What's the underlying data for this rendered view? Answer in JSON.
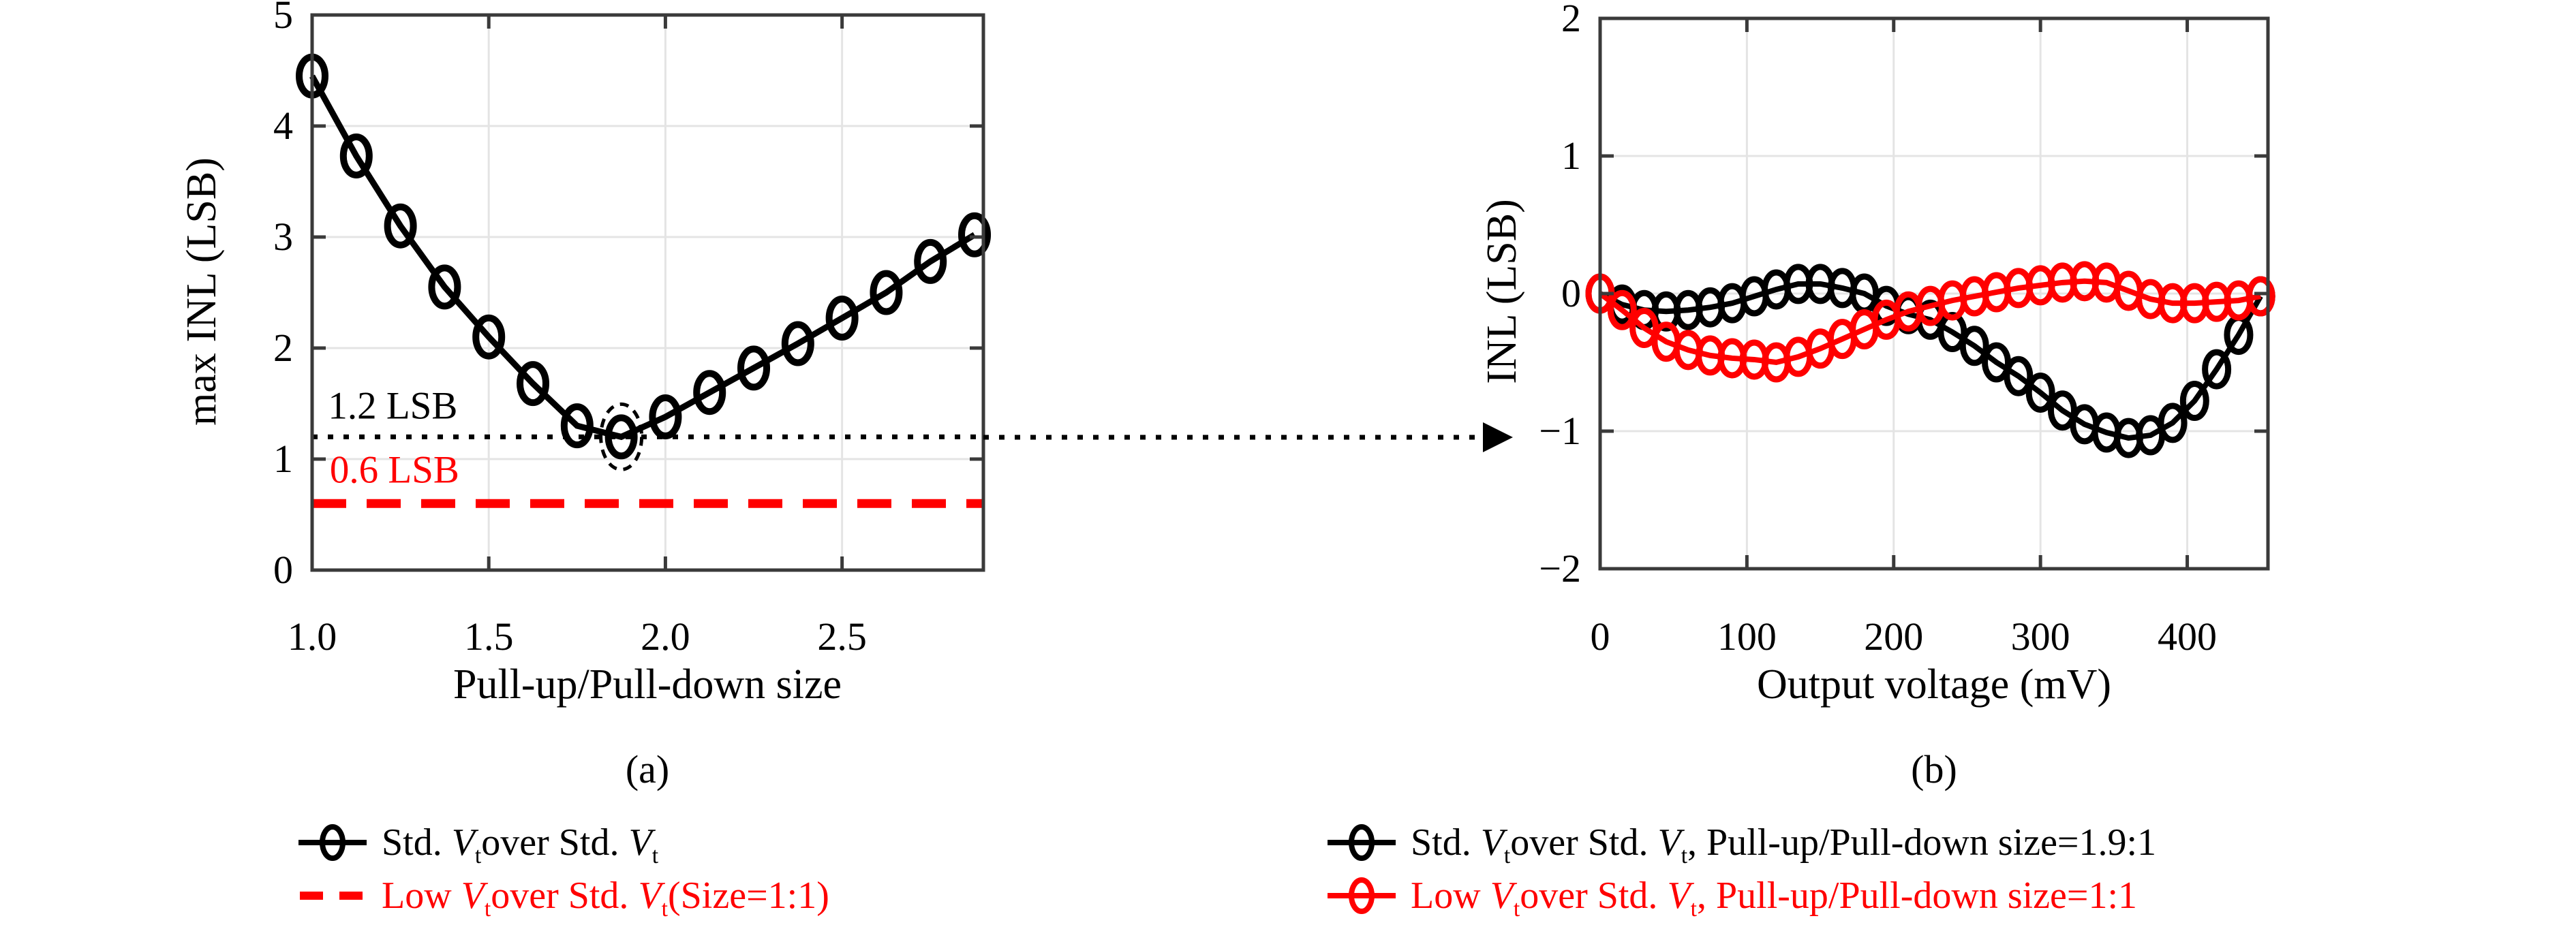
{
  "figure": {
    "background": "#ffffff",
    "frame_color": "#3a3a3a",
    "grid_color": "#e4e4e4",
    "accent_red": "#ff0000",
    "accent_black": "#000000"
  },
  "chart_data": [
    {
      "type": "line",
      "panel": "a",
      "caption": "(a)",
      "xlabel": "Pull-up/Pull-down size",
      "ylabel": "max INL (LSB)",
      "xlim": [
        1.0,
        2.9
      ],
      "ylim": [
        0,
        5
      ],
      "grid": true,
      "legend_position": "below-figure",
      "xticks": [
        {
          "v": 1.0,
          "label": "1.0"
        },
        {
          "v": 1.5,
          "label": "1.5"
        },
        {
          "v": 2.0,
          "label": "2.0"
        },
        {
          "v": 2.5,
          "label": "2.5"
        }
      ],
      "yticks": [
        {
          "v": 0,
          "label": "0"
        },
        {
          "v": 1,
          "label": "1"
        },
        {
          "v": 2,
          "label": "2"
        },
        {
          "v": 3,
          "label": "3"
        },
        {
          "v": 4,
          "label": "4"
        },
        {
          "v": 5,
          "label": "5"
        }
      ],
      "grid_x": [
        1.5,
        2.0,
        2.5
      ],
      "grid_y": [
        1,
        2,
        3,
        4
      ],
      "series": [
        {
          "name": "Std. V_tover Std. V_t",
          "color": "#000000",
          "style": "solid",
          "marker": "circle",
          "x": [
            1.0,
            1.125,
            1.25,
            1.375,
            1.5,
            1.625,
            1.75,
            1.875,
            2.0,
            2.125,
            2.25,
            2.375,
            2.5,
            2.625,
            2.75,
            2.875
          ],
          "y": [
            4.45,
            3.73,
            3.1,
            2.55,
            2.1,
            1.68,
            1.3,
            1.2,
            1.38,
            1.6,
            1.82,
            2.04,
            2.27,
            2.5,
            2.78,
            3.02
          ]
        },
        {
          "name": "Low V_tover Std. V_t(Size=1:1)",
          "color": "#ff0000",
          "style": "dashed",
          "marker": "none",
          "x": [
            1.0,
            2.9
          ],
          "y": [
            0.6,
            0.6
          ]
        }
      ],
      "ref_lines": [
        {
          "y": 1.2,
          "style": "dotted",
          "color": "#000000"
        }
      ],
      "highlights": [
        {
          "shape": "dashed-ellipse",
          "x": 1.875,
          "y": 1.2
        }
      ],
      "annotations": [
        {
          "text": "1.2 LSB",
          "color": "#000000",
          "x": 1.045,
          "y": 1.48
        },
        {
          "text": "0.6 LSB",
          "color": "#ff0000",
          "x": 1.05,
          "y": 0.9
        }
      ]
    },
    {
      "type": "line",
      "panel": "b",
      "caption": "(b)",
      "xlabel": "Output voltage (mV)",
      "ylabel": "INL (LSB)",
      "xlim": [
        0,
        455
      ],
      "ylim": [
        -2,
        2
      ],
      "grid": true,
      "legend_position": "below-figure",
      "xticks": [
        {
          "v": 0,
          "label": "0"
        },
        {
          "v": 100,
          "label": "100"
        },
        {
          "v": 200,
          "label": "200"
        },
        {
          "v": 300,
          "label": "300"
        },
        {
          "v": 400,
          "label": "400"
        }
      ],
      "yticks": [
        {
          "v": -2,
          "label": "−2"
        },
        {
          "v": -1,
          "label": "−1"
        },
        {
          "v": 0,
          "label": "0"
        },
        {
          "v": 1,
          "label": "1"
        },
        {
          "v": 2,
          "label": "2"
        }
      ],
      "grid_x": [
        100,
        200,
        300,
        400
      ],
      "grid_y": [
        -1,
        0,
        1
      ],
      "series": [
        {
          "name": "Std. V_tover Std. V_t, Pull-up/Pull-down size=1.9:1",
          "color": "#000000",
          "style": "solid",
          "marker": "circle",
          "x": [
            0,
            15,
            30,
            45,
            60,
            75,
            90,
            105,
            120,
            135,
            150,
            165,
            180,
            195,
            210,
            225,
            240,
            255,
            270,
            285,
            300,
            315,
            330,
            345,
            360,
            375,
            390,
            405,
            420,
            435,
            450
          ],
          "y": [
            0.0,
            -0.08,
            -0.12,
            -0.13,
            -0.12,
            -0.1,
            -0.07,
            -0.02,
            0.03,
            0.07,
            0.07,
            0.04,
            0.0,
            -0.09,
            -0.15,
            -0.19,
            -0.28,
            -0.38,
            -0.5,
            -0.6,
            -0.72,
            -0.85,
            -0.95,
            -1.01,
            -1.05,
            -1.03,
            -0.94,
            -0.78,
            -0.55,
            -0.3,
            -0.02
          ]
        },
        {
          "name": "Low V_tover Std. V_t, Pull-up/Pull-down size=1:1",
          "color": "#ff0000",
          "style": "solid",
          "marker": "circle",
          "x": [
            0,
            15,
            30,
            45,
            60,
            75,
            90,
            105,
            120,
            135,
            150,
            165,
            180,
            195,
            210,
            225,
            240,
            255,
            270,
            285,
            300,
            315,
            330,
            345,
            360,
            375,
            390,
            405,
            420,
            435,
            450
          ],
          "y": [
            0.0,
            -0.12,
            -0.25,
            -0.35,
            -0.41,
            -0.45,
            -0.47,
            -0.48,
            -0.5,
            -0.46,
            -0.4,
            -0.33,
            -0.26,
            -0.19,
            -0.13,
            -0.09,
            -0.05,
            -0.02,
            0.01,
            0.04,
            0.06,
            0.08,
            0.09,
            0.08,
            0.02,
            -0.04,
            -0.07,
            -0.07,
            -0.06,
            -0.05,
            -0.02
          ]
        }
      ],
      "ref_lines": [],
      "highlights": [],
      "annotations": []
    }
  ],
  "connector": {
    "type": "dotted-arrow",
    "from": "panel-a",
    "to": "panel-b",
    "y_value": 1.2,
    "color": "#000000"
  },
  "legend_a": {
    "items": [
      {
        "marker": "line-circle",
        "color": "#000000",
        "label": "Std. V_tover Std. V_t"
      },
      {
        "marker": "dashes",
        "color": "#ff0000",
        "label": "Low V_tover Std. V_t(Size=1:1)"
      }
    ]
  },
  "legend_b": {
    "items": [
      {
        "marker": "line-circle",
        "color": "#000000",
        "label": "Std. V_tover Std. V_t, Pull-up/Pull-down size=1.9:1"
      },
      {
        "marker": "line-circle",
        "color": "#ff0000",
        "label": "Low V_tover Std. V_t, Pull-up/Pull-down size=1:1"
      }
    ]
  }
}
